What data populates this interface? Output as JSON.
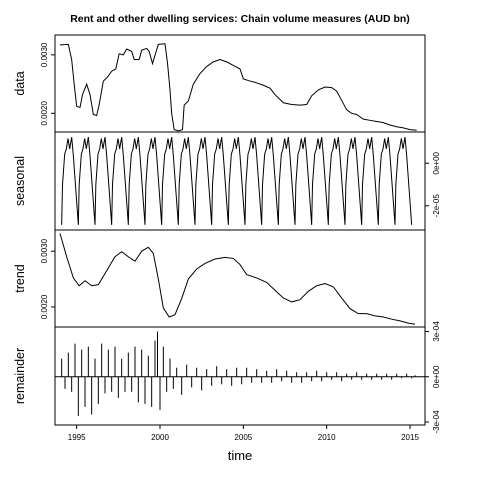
{
  "chart_data": {
    "type": "line",
    "title": "Rent and other dwelling services: Chain volume measures (AUD bn)",
    "xlabel": "time",
    "x_ticks": [
      "1995",
      "2000",
      "2005",
      "2010",
      "2015"
    ],
    "xlim": [
      1993.7,
      2015.9
    ],
    "panels": [
      {
        "name": "data",
        "ylim": [
          0.00168,
          0.00334
        ],
        "y_ticks": [
          {
            "value": 0.002,
            "label": "0.0020"
          },
          {
            "value": 0.003,
            "label": "0.0030"
          }
        ],
        "tick_side": "left",
        "style": "line",
        "points": [
          [
            1994.0,
            0.00317
          ],
          [
            1994.5,
            0.00318
          ],
          [
            1994.7,
            0.00292
          ],
          [
            1994.85,
            0.0025
          ],
          [
            1995.0,
            0.00212
          ],
          [
            1995.2,
            0.0021
          ],
          [
            1995.35,
            0.00232
          ],
          [
            1995.6,
            0.0025
          ],
          [
            1995.8,
            0.00232
          ],
          [
            1996.0,
            0.00198
          ],
          [
            1996.2,
            0.00196
          ],
          [
            1996.35,
            0.00215
          ],
          [
            1996.6,
            0.00255
          ],
          [
            1996.85,
            0.00262
          ],
          [
            1997.1,
            0.00272
          ],
          [
            1997.35,
            0.00276
          ],
          [
            1997.55,
            0.00302
          ],
          [
            1997.8,
            0.003
          ],
          [
            1998.0,
            0.0031
          ],
          [
            1998.3,
            0.00306
          ],
          [
            1998.45,
            0.00292
          ],
          [
            1998.75,
            0.00292
          ],
          [
            1998.9,
            0.00308
          ],
          [
            1999.2,
            0.00311
          ],
          [
            1999.35,
            0.00306
          ],
          [
            1999.55,
            0.00285
          ],
          [
            1999.9,
            0.00318
          ],
          [
            2000.3,
            0.00319
          ],
          [
            2000.45,
            0.00286
          ],
          [
            2000.6,
            0.0024
          ],
          [
            2000.7,
            0.002
          ],
          [
            2000.85,
            0.00172
          ],
          [
            2001.1,
            0.0017
          ],
          [
            2001.35,
            0.00172
          ],
          [
            2001.45,
            0.00214
          ],
          [
            2001.7,
            0.00221
          ],
          [
            2002.0,
            0.0025
          ],
          [
            2002.4,
            0.00268
          ],
          [
            2002.8,
            0.0028
          ],
          [
            2003.2,
            0.00288
          ],
          [
            2003.6,
            0.00292
          ],
          [
            2004.0,
            0.00288
          ],
          [
            2004.4,
            0.00282
          ],
          [
            2004.8,
            0.00276
          ],
          [
            2005.0,
            0.00259
          ],
          [
            2005.3,
            0.00256
          ],
          [
            2005.7,
            0.00253
          ],
          [
            2006.2,
            0.00248
          ],
          [
            2006.6,
            0.00243
          ],
          [
            2006.9,
            0.00232
          ],
          [
            2007.4,
            0.00218
          ],
          [
            2007.9,
            0.00215
          ],
          [
            2008.4,
            0.00214
          ],
          [
            2008.8,
            0.00215
          ],
          [
            2009.1,
            0.0023
          ],
          [
            2009.5,
            0.0024
          ],
          [
            2009.9,
            0.00245
          ],
          [
            2010.3,
            0.00244
          ],
          [
            2010.6,
            0.00238
          ],
          [
            2010.9,
            0.00222
          ],
          [
            2011.2,
            0.00206
          ],
          [
            2011.5,
            0.002
          ],
          [
            2011.8,
            0.00198
          ],
          [
            2012.2,
            0.0019
          ],
          [
            2012.6,
            0.00188
          ],
          [
            2013.0,
            0.00186
          ],
          [
            2013.4,
            0.00184
          ],
          [
            2013.8,
            0.0018
          ],
          [
            2014.2,
            0.00177
          ],
          [
            2014.6,
            0.00175
          ],
          [
            2015.0,
            0.00172
          ],
          [
            2015.4,
            0.00171
          ]
        ]
      },
      {
        "name": "seasonal",
        "ylim": [
          -3.14e-05,
          1.47e-05
        ],
        "y_ticks": [
          {
            "value": 0,
            "label": "0e+00"
          },
          {
            "value": -2e-05,
            "label": "-2e-05"
          }
        ],
        "tick_side": "right",
        "style": "seasonal",
        "cycles": 21,
        "start_year": 1994.1,
        "amplitude_max": 1.23e-05,
        "amplitude_min": -2.9e-05
      },
      {
        "name": "trend",
        "ylim": [
          0.00164,
          0.00338
        ],
        "y_ticks": [
          {
            "value": 0.002,
            "label": "0.0020"
          },
          {
            "value": 0.003,
            "label": "0.0030"
          }
        ],
        "tick_side": "left",
        "style": "line",
        "points": [
          [
            1994.0,
            0.00332
          ],
          [
            1994.4,
            0.0029
          ],
          [
            1994.8,
            0.00252
          ],
          [
            1995.15,
            0.00238
          ],
          [
            1995.5,
            0.00247
          ],
          [
            1995.9,
            0.00238
          ],
          [
            1996.3,
            0.0024
          ],
          [
            1996.8,
            0.00265
          ],
          [
            1997.3,
            0.0029
          ],
          [
            1997.7,
            0.00299
          ],
          [
            1998.1,
            0.0029
          ],
          [
            1998.5,
            0.00282
          ],
          [
            1998.9,
            0.003
          ],
          [
            1999.3,
            0.00307
          ],
          [
            1999.6,
            0.00296
          ],
          [
            1999.9,
            0.0025
          ],
          [
            2000.2,
            0.00198
          ],
          [
            2000.55,
            0.00182
          ],
          [
            2000.9,
            0.00186
          ],
          [
            2001.3,
            0.00215
          ],
          [
            2001.7,
            0.0025
          ],
          [
            2002.2,
            0.00268
          ],
          [
            2002.7,
            0.00278
          ],
          [
            2003.3,
            0.00286
          ],
          [
            2003.9,
            0.00289
          ],
          [
            2004.4,
            0.00287
          ],
          [
            2004.8,
            0.00276
          ],
          [
            2005.2,
            0.00258
          ],
          [
            2005.8,
            0.00252
          ],
          [
            2006.4,
            0.00244
          ],
          [
            2006.9,
            0.0023
          ],
          [
            2007.4,
            0.00216
          ],
          [
            2007.9,
            0.00209
          ],
          [
            2008.4,
            0.00213
          ],
          [
            2008.9,
            0.00228
          ],
          [
            2009.4,
            0.00238
          ],
          [
            2009.9,
            0.00242
          ],
          [
            2010.4,
            0.00236
          ],
          [
            2010.9,
            0.00216
          ],
          [
            2011.4,
            0.00197
          ],
          [
            2011.9,
            0.00188
          ],
          [
            2012.4,
            0.00188
          ],
          [
            2012.9,
            0.00184
          ],
          [
            2013.4,
            0.00182
          ],
          [
            2013.9,
            0.00178
          ],
          [
            2014.4,
            0.00175
          ],
          [
            2014.9,
            0.00171
          ],
          [
            2015.3,
            0.00169
          ]
        ]
      },
      {
        "name": "remainder",
        "ylim": [
          -0.00032,
          0.00033
        ],
        "y_ticks": [
          {
            "value": 0.0003,
            "label": "3e-04"
          },
          {
            "value": 0,
            "label": "0e+00"
          },
          {
            "value": -0.0003,
            "label": "-3e-04"
          }
        ],
        "tick_side": "right",
        "style": "bars",
        "bars": [
          [
            1994.1,
            0.00012
          ],
          [
            1994.3,
            -8e-05
          ],
          [
            1994.5,
            0.00016
          ],
          [
            1994.7,
            -0.0001
          ],
          [
            1994.9,
            0.00022
          ],
          [
            1995.1,
            -0.00026
          ],
          [
            1995.3,
            0.00018
          ],
          [
            1995.5,
            -0.0002
          ],
          [
            1995.7,
            0.0002
          ],
          [
            1995.9,
            -0.00025
          ],
          [
            1996.1,
            0.00012
          ],
          [
            1996.3,
            -0.00018
          ],
          [
            1996.5,
            0.00022
          ],
          [
            1996.7,
            -0.00011
          ],
          [
            1996.9,
            0.00018
          ],
          [
            1997.1,
            -0.0001
          ],
          [
            1997.3,
            0.0002
          ],
          [
            1997.5,
            -0.00014
          ],
          [
            1997.7,
            0.00012
          ],
          [
            1997.9,
            -0.0001
          ],
          [
            1998.1,
            0.00016
          ],
          [
            1998.3,
            -0.0001
          ],
          [
            1998.5,
            0.0002
          ],
          [
            1998.7,
            -0.00017
          ],
          [
            1998.9,
            0.00018
          ],
          [
            1999.1,
            -0.00018
          ],
          [
            1999.3,
            0.00014
          ],
          [
            1999.5,
            -0.0002
          ],
          [
            1999.7,
            0.00024
          ],
          [
            1999.85,
            0.0003
          ],
          [
            2000.0,
            -0.00022
          ],
          [
            2000.2,
            0.0002
          ],
          [
            2000.4,
            -0.0001
          ],
          [
            2000.6,
            0.00012
          ],
          [
            2000.8,
            -8e-05
          ],
          [
            2001.0,
            6e-05
          ],
          [
            2001.3,
            -0.00012
          ],
          [
            2001.6,
            8e-05
          ],
          [
            2001.9,
            -7e-05
          ],
          [
            2002.2,
            6e-05
          ],
          [
            2002.5,
            -9e-05
          ],
          [
            2002.8,
            5e-05
          ],
          [
            2003.1,
            -6e-05
          ],
          [
            2003.4,
            7e-05
          ],
          [
            2003.7,
            -5e-05
          ],
          [
            2004.0,
            5e-05
          ],
          [
            2004.3,
            -6e-05
          ],
          [
            2004.6,
            6e-05
          ],
          [
            2004.9,
            -5e-05
          ],
          [
            2005.2,
            6e-05
          ],
          [
            2005.5,
            -4e-05
          ],
          [
            2005.8,
            5e-05
          ],
          [
            2006.1,
            -4e-05
          ],
          [
            2006.4,
            4e-05
          ],
          [
            2006.7,
            -4e-05
          ],
          [
            2007.0,
            5e-05
          ],
          [
            2007.3,
            -3e-05
          ],
          [
            2007.6,
            4e-05
          ],
          [
            2007.9,
            -4e-05
          ],
          [
            2008.2,
            3e-05
          ],
          [
            2008.5,
            -4e-05
          ],
          [
            2008.8,
            3e-05
          ],
          [
            2009.1,
            -3e-05
          ],
          [
            2009.4,
            4e-05
          ],
          [
            2009.7,
            -3e-05
          ],
          [
            2010.0,
            3e-05
          ],
          [
            2010.3,
            -2e-05
          ],
          [
            2010.6,
            3e-05
          ],
          [
            2010.9,
            -3e-05
          ],
          [
            2011.2,
            2e-05
          ],
          [
            2011.5,
            -2e-05
          ],
          [
            2011.8,
            3e-05
          ],
          [
            2012.1,
            -2e-05
          ],
          [
            2012.4,
            2e-05
          ],
          [
            2012.7,
            -2e-05
          ],
          [
            2013.0,
            2e-05
          ],
          [
            2013.3,
            -2e-05
          ],
          [
            2013.6,
            2e-05
          ],
          [
            2013.9,
            -2e-05
          ],
          [
            2014.2,
            2e-05
          ],
          [
            2014.5,
            -1e-05
          ],
          [
            2014.8,
            2e-05
          ],
          [
            2015.1,
            -1e-05
          ],
          [
            2015.3,
            1e-05
          ]
        ]
      }
    ]
  }
}
